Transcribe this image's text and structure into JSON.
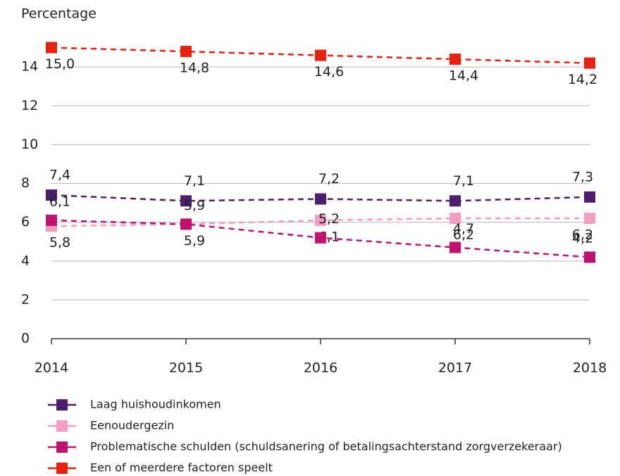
{
  "chart_data": {
    "type": "line",
    "y_label": "Percentage",
    "categories": [
      "2014",
      "2015",
      "2016",
      "2017",
      "2018"
    ],
    "series": [
      {
        "name": "Laag huishoudinkomen",
        "color": "#4b1e6e",
        "values": [
          7.4,
          7.1,
          7.2,
          7.1,
          7.3
        ],
        "value_labels": [
          "7,4",
          "7,1",
          "7,2",
          "7,1",
          "7,3"
        ]
      },
      {
        "name": "Eenoudergezin",
        "color": "#f19ec2",
        "values": [
          5.8,
          5.9,
          6.1,
          6.2,
          6.2
        ],
        "value_labels": [
          "5,8",
          "5,9",
          "6,1",
          "6,2",
          "6,2"
        ]
      },
      {
        "name": "Problematische schulden (schuldsanering of betalingsachterstand zorgverzekeraar)",
        "color": "#c0136f",
        "values": [
          6.1,
          5.9,
          5.2,
          4.7,
          4.2
        ],
        "value_labels": [
          "6,1",
          "5,9",
          "5,2",
          "4,7",
          "4,2"
        ]
      },
      {
        "name": "Een of meerdere factoren speelt",
        "color": "#e8210f",
        "values": [
          15.0,
          14.8,
          14.6,
          14.4,
          14.2
        ],
        "value_labels": [
          "15,0",
          "14,8",
          "14,6",
          "14,4",
          "14,2"
        ]
      }
    ],
    "ylim": [
      0,
      16
    ],
    "yticks": [
      0,
      2,
      4,
      6,
      8,
      10,
      12,
      14
    ],
    "grid": true,
    "legend": "bottom"
  }
}
